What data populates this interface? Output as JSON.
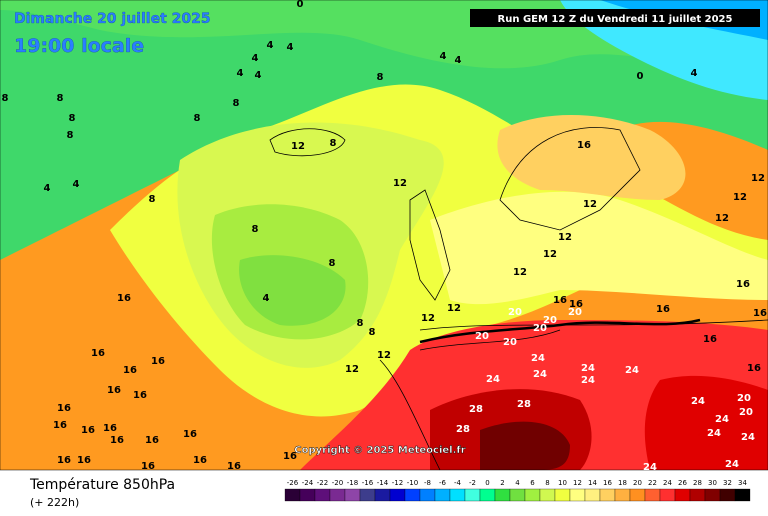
{
  "header": {
    "date": "Dimanche 20 juillet 2025",
    "time": "19:00 locale",
    "run": "Run GEM 12 Z du Vendredi 11 juillet 2025",
    "copyright": "Copyright © 2025 Meteociel.fr"
  },
  "footer": {
    "title": "Température 850hPa",
    "lead": "(+ 222h)"
  },
  "contour_labels": [
    0,
    4,
    4,
    4,
    4,
    4,
    4,
    4,
    4,
    4,
    4,
    4,
    0,
    8,
    8,
    8,
    8,
    8,
    8,
    8,
    8,
    8,
    8,
    8,
    8,
    8,
    12,
    12,
    12,
    12,
    12,
    12,
    12,
    12,
    12,
    12,
    12,
    12,
    12,
    16,
    16,
    16,
    16,
    16,
    16,
    16,
    16,
    16,
    16,
    16,
    16,
    16,
    16,
    16,
    16,
    16,
    16,
    16,
    16,
    16,
    16,
    16,
    16,
    16,
    16,
    16,
    20,
    20,
    20,
    20,
    20,
    20,
    20,
    20,
    24,
    24,
    24,
    24,
    24,
    24,
    24,
    24,
    24,
    24,
    24,
    24,
    28,
    28,
    28
  ],
  "scale": {
    "values": [
      -26,
      -24,
      -22,
      -20,
      -18,
      -16,
      -14,
      -12,
      -10,
      -8,
      -6,
      -4,
      -2,
      0,
      2,
      4,
      6,
      8,
      10,
      12,
      14,
      16,
      18,
      20,
      22,
      24,
      26,
      28,
      30,
      32,
      34
    ],
    "colors": [
      "#2a0036",
      "#45005a",
      "#5e0f7a",
      "#7a2a92",
      "#8e45a8",
      "#3d3d8c",
      "#1a1aa0",
      "#0000d0",
      "#0040ff",
      "#0080ff",
      "#00b0ff",
      "#00e0ff",
      "#40ffe0",
      "#00ff90",
      "#30e040",
      "#70e040",
      "#a0f040",
      "#d0f850",
      "#f0ff40",
      "#ffff80",
      "#fff080",
      "#ffd060",
      "#ffb040",
      "#ff9020",
      "#ff6030",
      "#ff3030",
      "#e00000",
      "#b00000",
      "#800000",
      "#400000",
      "#000000"
    ]
  }
}
